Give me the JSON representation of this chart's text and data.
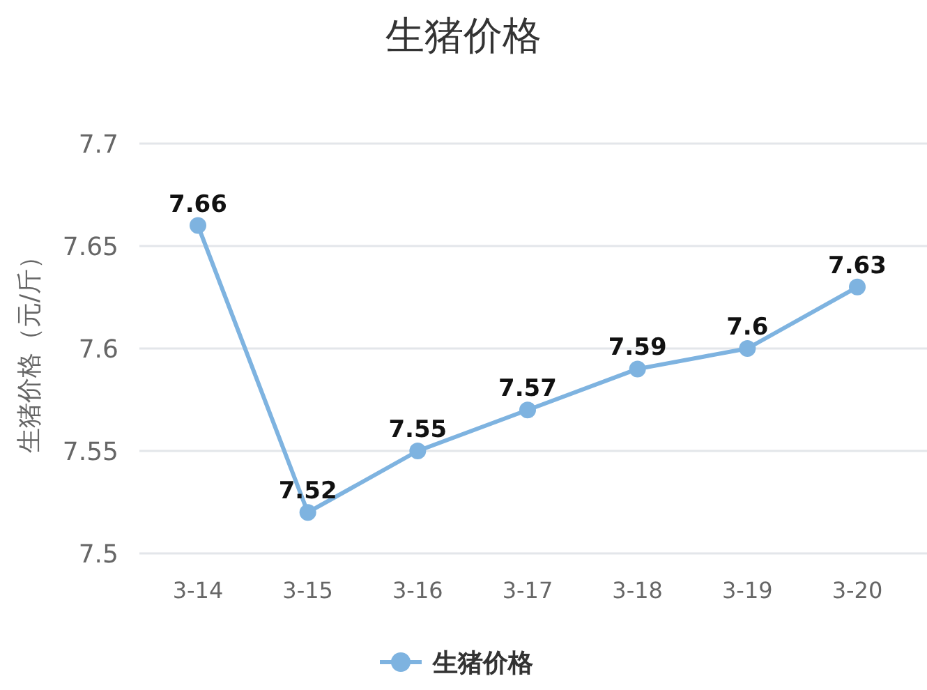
{
  "chart_data": {
    "type": "line",
    "title": "生猪价格",
    "ylabel": "生猪价格（元/斤）",
    "categories": [
      "3-14",
      "3-15",
      "3-16",
      "3-17",
      "3-18",
      "3-19",
      "3-20"
    ],
    "series": [
      {
        "name": "生猪价格",
        "color": "#7eb3e0",
        "values": [
          7.66,
          7.52,
          7.55,
          7.57,
          7.59,
          7.6,
          7.63
        ]
      }
    ],
    "ylim": [
      7.5,
      7.7
    ],
    "yticks": [
      7.5,
      7.55,
      7.6,
      7.65,
      7.7
    ],
    "grid": "y",
    "legend": "bottom",
    "marker": "circle",
    "data_labels": true
  }
}
